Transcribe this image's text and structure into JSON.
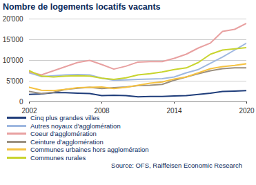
{
  "chart_data": {
    "type": "line",
    "title": "Nombre de logements locatifs vacants",
    "source": "Source: OFS, Raiffeisen Economic Research",
    "x": [
      2002,
      2003,
      2004,
      2005,
      2006,
      2007,
      2008,
      2009,
      2010,
      2011,
      2012,
      2013,
      2014,
      2015,
      2016,
      2017,
      2018,
      2019,
      2020
    ],
    "xlim": [
      2002,
      2020
    ],
    "xticks": [
      2002,
      2008,
      2014,
      2020
    ],
    "ylim": [
      0,
      20000
    ],
    "yticks": [
      0,
      {
        "value": 5000,
        "label": "5'000"
      },
      {
        "value": 10000,
        "label": "10'000"
      },
      {
        "value": 15000,
        "label": "15'000"
      },
      {
        "value": 20000,
        "label": "20'000"
      }
    ],
    "grid": true,
    "legend": "bottom",
    "series": [
      {
        "name": "Cinq plus grandes villes",
        "color": "#1f3d7a",
        "values": [
          1800,
          1900,
          2200,
          2200,
          2100,
          2000,
          1500,
          1600,
          1500,
          1200,
          1300,
          1300,
          1400,
          1500,
          1800,
          2100,
          2500,
          2600,
          2700
        ]
      },
      {
        "name": "Autres noyaux d'agglomération",
        "color": "#9fb8e0",
        "values": [
          7000,
          6100,
          6300,
          6500,
          6600,
          6500,
          5700,
          5200,
          5300,
          5400,
          5500,
          5600,
          6000,
          7000,
          7800,
          9300,
          10800,
          12500,
          14200
        ]
      },
      {
        "name": "Coeur d'agglomération",
        "color": "#e8a0a0",
        "values": [
          7200,
          6500,
          7500,
          8500,
          9500,
          10000,
          9000,
          7900,
          8600,
          9600,
          9700,
          9700,
          10500,
          11500,
          13000,
          14200,
          17000,
          17500,
          19000
        ]
      },
      {
        "name": "Ceinture d'agglomération",
        "color": "#9a8f80",
        "values": [
          2500,
          2000,
          2300,
          3000,
          3300,
          3500,
          3200,
          3400,
          3600,
          3900,
          4000,
          4200,
          5200,
          6000,
          6800,
          7500,
          8000,
          8200,
          8200
        ]
      },
      {
        "name": "Communes urbaines hors agglomération",
        "color": "#f5c242",
        "values": [
          3500,
          2800,
          2700,
          3000,
          3400,
          3500,
          3600,
          3200,
          3500,
          4000,
          4500,
          4800,
          5500,
          6000,
          7000,
          8000,
          8500,
          8800,
          9200
        ]
      },
      {
        "name": "Communes rurales",
        "color": "#c8d42e",
        "values": [
          7500,
          6200,
          6000,
          6200,
          6300,
          6200,
          5700,
          5400,
          5800,
          6500,
          6800,
          7200,
          7800,
          8200,
          9500,
          11500,
          12500,
          12800,
          13100
        ]
      }
    ]
  }
}
